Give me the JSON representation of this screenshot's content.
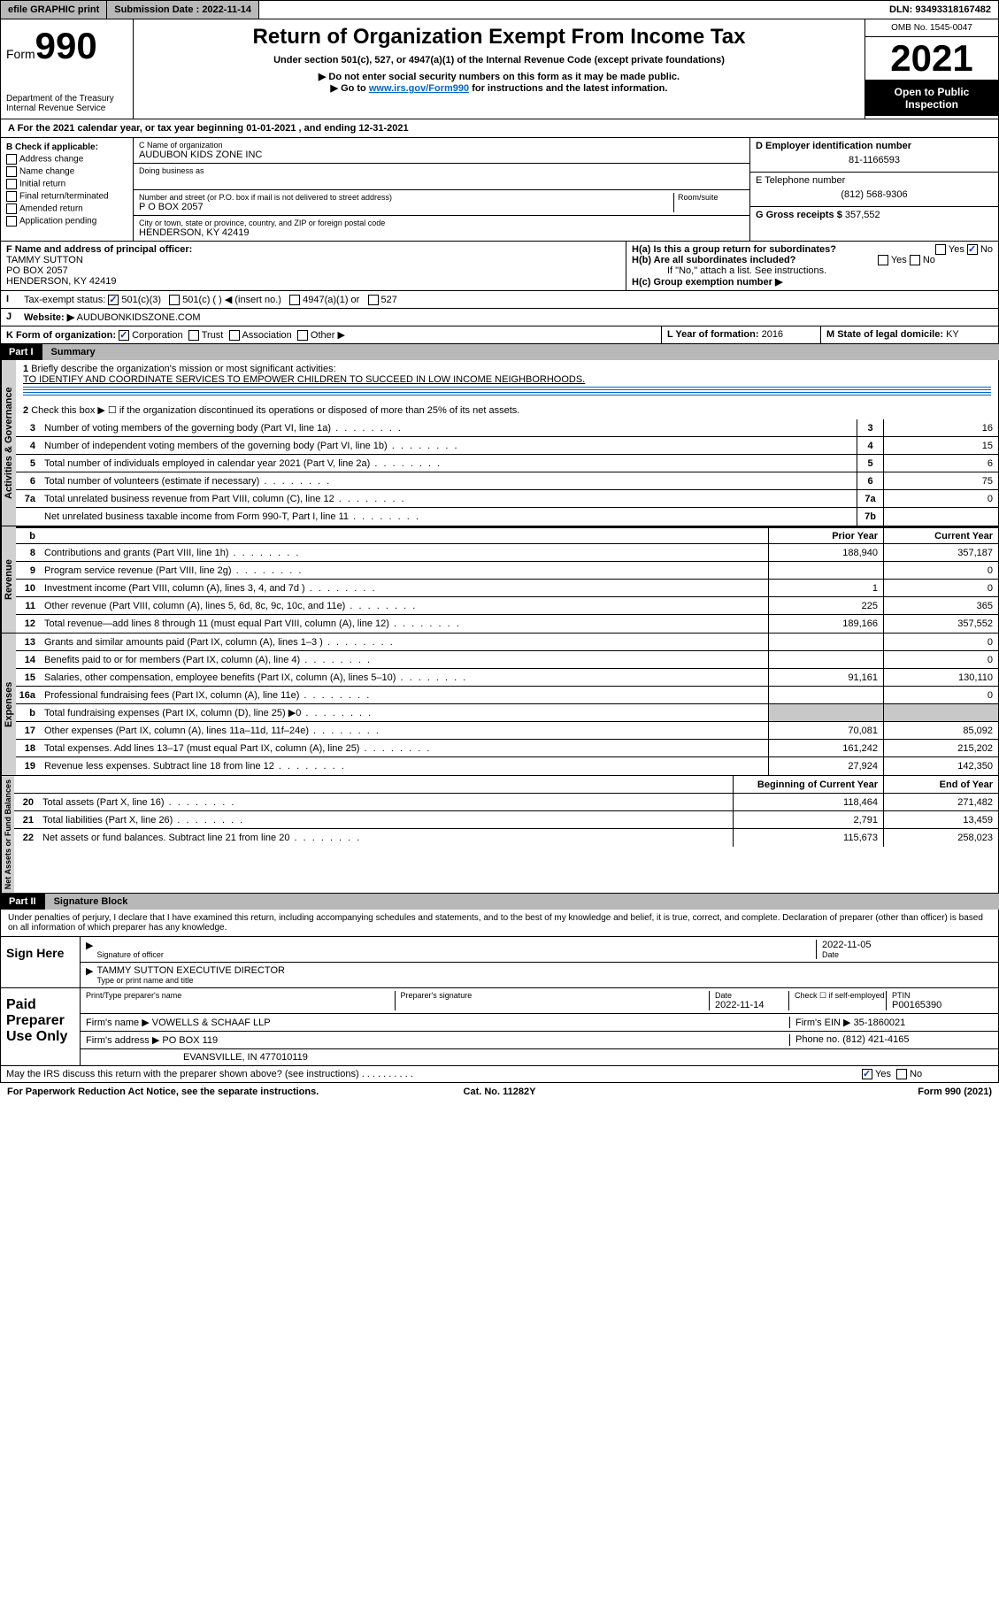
{
  "topbar": {
    "efile": "efile GRAPHIC print",
    "submission_label": "Submission Date : 2022-11-14",
    "dln": "DLN: 93493318167482"
  },
  "header": {
    "form_prefix": "Form",
    "form_number": "990",
    "dept": "Department of the Treasury",
    "irs": "Internal Revenue Service",
    "title": "Return of Organization Exempt From Income Tax",
    "subtitle": "Under section 501(c), 527, or 4947(a)(1) of the Internal Revenue Code (except private foundations)",
    "note1": "▶ Do not enter social security numbers on this form as it may be made public.",
    "note2_pre": "▶ Go to ",
    "note2_link": "www.irs.gov/Form990",
    "note2_post": " for instructions and the latest information.",
    "omb": "OMB No. 1545-0047",
    "year": "2021",
    "inspect": "Open to Public Inspection"
  },
  "period": {
    "text": "A For the 2021 calendar year, or tax year beginning 01-01-2021  , and ending 12-31-2021"
  },
  "section_b": {
    "label": "B Check if applicable:",
    "items": [
      "Address change",
      "Name change",
      "Initial return",
      "Final return/terminated",
      "Amended return",
      "Application pending"
    ]
  },
  "section_c": {
    "name_label": "C Name of organization",
    "name": "AUDUBON KIDS ZONE INC",
    "dba_label": "Doing business as",
    "dba": "",
    "addr_label": "Number and street (or P.O. box if mail is not delivered to street address)",
    "room_label": "Room/suite",
    "addr": "P O BOX 2057",
    "city_label": "City or town, state or province, country, and ZIP or foreign postal code",
    "city": "HENDERSON, KY  42419"
  },
  "section_d": {
    "label": "D Employer identification number",
    "value": "81-1166593"
  },
  "section_e": {
    "label": "E Telephone number",
    "value": "(812) 568-9306"
  },
  "section_g": {
    "label": "G Gross receipts $",
    "value": "357,552"
  },
  "section_f": {
    "label": "F Name and address of principal officer:",
    "name": "TAMMY SUTTON",
    "addr1": "PO BOX 2057",
    "addr2": "HENDERSON, KY  42419"
  },
  "section_h": {
    "a_label": "H(a)  Is this a group return for subordinates?",
    "a_yes": "Yes",
    "a_no": "No",
    "b_label": "H(b)  Are all subordinates included?",
    "b_note": "If \"No,\" attach a list. See instructions.",
    "c_label": "H(c)  Group exemption number ▶"
  },
  "section_i": {
    "label": "Tax-exempt status:",
    "opts": [
      "501(c)(3)",
      "501(c) (  ) ◀ (insert no.)",
      "4947(a)(1) or",
      "527"
    ]
  },
  "section_j": {
    "label": "Website: ▶",
    "value": "AUDUBONKIDSZONE.COM"
  },
  "section_k": {
    "label": "K Form of organization:",
    "opts": [
      "Corporation",
      "Trust",
      "Association",
      "Other ▶"
    ]
  },
  "section_l": {
    "label": "L Year of formation:",
    "value": "2016"
  },
  "section_m": {
    "label": "M State of legal domicile:",
    "value": "KY"
  },
  "part1": {
    "num": "Part I",
    "title": "Summary"
  },
  "summary": {
    "line1_label": "Briefly describe the organization's mission or most significant activities:",
    "line1_text": "TO IDENTIFY AND COORDINATE SERVICES TO EMPOWER CHILDREN TO SUCCEED IN LOW INCOME NEIGHBORHOODS.",
    "line2": "Check this box ▶ ☐ if the organization discontinued its operations or disposed of more than 25% of its net assets.",
    "governance": [
      {
        "n": "3",
        "d": "Number of voting members of the governing body (Part VI, line 1a)",
        "b": "3",
        "v": "16"
      },
      {
        "n": "4",
        "d": "Number of independent voting members of the governing body (Part VI, line 1b)",
        "b": "4",
        "v": "15"
      },
      {
        "n": "5",
        "d": "Total number of individuals employed in calendar year 2021 (Part V, line 2a)",
        "b": "5",
        "v": "6"
      },
      {
        "n": "6",
        "d": "Total number of volunteers (estimate if necessary)",
        "b": "6",
        "v": "75"
      },
      {
        "n": "7a",
        "d": "Total unrelated business revenue from Part VIII, column (C), line 12",
        "b": "7a",
        "v": "0"
      },
      {
        "n": "",
        "d": "Net unrelated business taxable income from Form 990-T, Part I, line 11",
        "b": "7b",
        "v": ""
      }
    ],
    "col_prior": "Prior Year",
    "col_current": "Current Year",
    "revenue": [
      {
        "n": "8",
        "d": "Contributions and grants (Part VIII, line 1h)",
        "p": "188,940",
        "c": "357,187"
      },
      {
        "n": "9",
        "d": "Program service revenue (Part VIII, line 2g)",
        "p": "",
        "c": "0"
      },
      {
        "n": "10",
        "d": "Investment income (Part VIII, column (A), lines 3, 4, and 7d )",
        "p": "1",
        "c": "0"
      },
      {
        "n": "11",
        "d": "Other revenue (Part VIII, column (A), lines 5, 6d, 8c, 9c, 10c, and 11e)",
        "p": "225",
        "c": "365"
      },
      {
        "n": "12",
        "d": "Total revenue—add lines 8 through 11 (must equal Part VIII, column (A), line 12)",
        "p": "189,166",
        "c": "357,552"
      }
    ],
    "expenses": [
      {
        "n": "13",
        "d": "Grants and similar amounts paid (Part IX, column (A), lines 1–3 )",
        "p": "",
        "c": "0"
      },
      {
        "n": "14",
        "d": "Benefits paid to or for members (Part IX, column (A), line 4)",
        "p": "",
        "c": "0"
      },
      {
        "n": "15",
        "d": "Salaries, other compensation, employee benefits (Part IX, column (A), lines 5–10)",
        "p": "91,161",
        "c": "130,110"
      },
      {
        "n": "16a",
        "d": "Professional fundraising fees (Part IX, column (A), line 11e)",
        "p": "",
        "c": "0"
      },
      {
        "n": "b",
        "d": "Total fundraising expenses (Part IX, column (D), line 25) ▶0",
        "p": "grey",
        "c": "grey"
      },
      {
        "n": "17",
        "d": "Other expenses (Part IX, column (A), lines 11a–11d, 11f–24e)",
        "p": "70,081",
        "c": "85,092"
      },
      {
        "n": "18",
        "d": "Total expenses. Add lines 13–17 (must equal Part IX, column (A), line 25)",
        "p": "161,242",
        "c": "215,202"
      },
      {
        "n": "19",
        "d": "Revenue less expenses. Subtract line 18 from line 12",
        "p": "27,924",
        "c": "142,350"
      }
    ],
    "col_begin": "Beginning of Current Year",
    "col_end": "End of Year",
    "netassets": [
      {
        "n": "20",
        "d": "Total assets (Part X, line 16)",
        "p": "118,464",
        "c": "271,482"
      },
      {
        "n": "21",
        "d": "Total liabilities (Part X, line 26)",
        "p": "2,791",
        "c": "13,459"
      },
      {
        "n": "22",
        "d": "Net assets or fund balances. Subtract line 21 from line 20",
        "p": "115,673",
        "c": "258,023"
      }
    ]
  },
  "part2": {
    "num": "Part II",
    "title": "Signature Block"
  },
  "penalties": "Under penalties of perjury, I declare that I have examined this return, including accompanying schedules and statements, and to the best of my knowledge and belief, it is true, correct, and complete. Declaration of preparer (other than officer) is based on all information of which preparer has any knowledge.",
  "sign_here": {
    "label": "Sign Here",
    "sig_officer": "Signature of officer",
    "date_label": "Date",
    "date": "2022-11-05",
    "name": "TAMMY SUTTON  EXECUTIVE DIRECTOR",
    "name_label": "Type or print name and title"
  },
  "preparer": {
    "label": "Paid Preparer Use Only",
    "col_name": "Print/Type preparer's name",
    "col_sig": "Preparer's signature",
    "col_date": "Date",
    "date": "2022-11-14",
    "check_label": "Check ☐ if self-employed",
    "ptin_label": "PTIN",
    "ptin": "P00165390",
    "firm_name_label": "Firm's name    ▶",
    "firm_name": "VOWELLS & SCHAAF LLP",
    "firm_ein_label": "Firm's EIN ▶",
    "firm_ein": "35-1860021",
    "firm_addr_label": "Firm's address ▶",
    "firm_addr1": "PO BOX 119",
    "firm_addr2": "EVANSVILLE, IN  477010119",
    "phone_label": "Phone no.",
    "phone": "(812) 421-4165"
  },
  "discuss": {
    "label": "May the IRS discuss this return with the preparer shown above? (see instructions)",
    "yes": "Yes",
    "no": "No"
  },
  "footer": {
    "left": "For Paperwork Reduction Act Notice, see the separate instructions.",
    "center": "Cat. No. 11282Y",
    "right": "Form 990 (2021)"
  },
  "labels": {
    "activities": "Activities & Governance",
    "revenue": "Revenue",
    "expenses": "Expenses",
    "netassets": "Net Assets or Fund Balances"
  }
}
